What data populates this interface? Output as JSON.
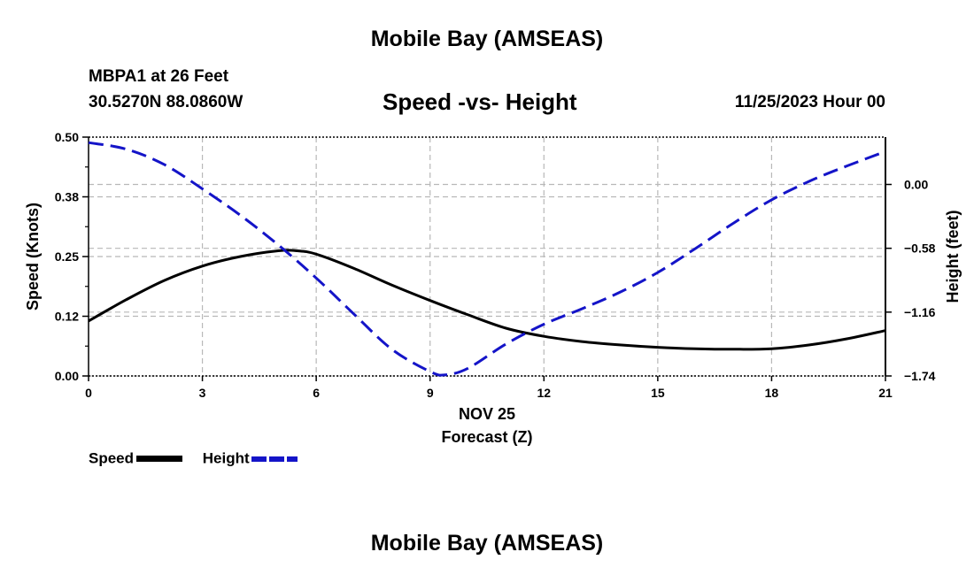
{
  "header": {
    "title": "Mobile Bay (AMSEAS)",
    "station": "MBPA1 at 26 Feet",
    "coordinates": "30.5270N  88.0860W",
    "chart_title": "Speed -vs- Height",
    "datetime": "11/25/2023 Hour 00"
  },
  "legend": {
    "speed": "Speed",
    "height": "Height"
  },
  "footer": {
    "title": "Mobile Bay (AMSEAS)"
  },
  "colors": {
    "speed": "#000000",
    "height": "#1414c8",
    "grid": "#b8b8b8"
  },
  "chart_data": {
    "type": "line",
    "title": "Speed -vs- Height",
    "xlabel": "Forecast (Z)",
    "xdate": "NOV 25",
    "ylabel": "Speed (Knots)",
    "y2label": "Height (feet)",
    "xlim": [
      0,
      21
    ],
    "ylim": [
      0,
      0.5
    ],
    "y2lim": [
      -1.74,
      0.43
    ],
    "x_ticks": [
      0,
      3,
      6,
      9,
      12,
      15,
      18,
      21
    ],
    "x_tick_labels": [
      "0",
      "3",
      "6",
      "9",
      "12",
      "15",
      "18",
      "21"
    ],
    "y_ticks": [
      0,
      0.125,
      0.25,
      0.375,
      0.5
    ],
    "y_tick_labels": [
      "0.00",
      "0.12",
      "0.25",
      "0.38",
      "0.50"
    ],
    "y2_ticks": [
      0,
      -0.58,
      -1.16,
      -1.74
    ],
    "y2_tick_labels": [
      "0.00",
      "−0.58",
      "−1.16",
      "−1.74"
    ],
    "grid": true,
    "legend_position": "bottom-left",
    "series": [
      {
        "name": "Speed",
        "axis": "left",
        "style": "solid",
        "x": [
          0,
          1,
          2,
          3,
          4,
          5,
          5.5,
          6,
          7,
          8,
          9,
          10,
          11,
          12,
          13,
          14,
          15,
          16,
          17,
          18,
          19,
          20,
          21
        ],
        "values": [
          0.115,
          0.16,
          0.2,
          0.23,
          0.25,
          0.262,
          0.262,
          0.255,
          0.225,
          0.19,
          0.158,
          0.128,
          0.1,
          0.083,
          0.072,
          0.065,
          0.06,
          0.057,
          0.056,
          0.057,
          0.065,
          0.078,
          0.095
        ]
      },
      {
        "name": "Height",
        "axis": "right",
        "style": "dashed",
        "x": [
          0,
          1,
          2,
          3,
          4,
          5,
          6,
          7,
          8,
          9,
          9.4,
          10,
          11,
          12,
          13,
          14,
          15,
          16,
          17,
          18,
          19,
          20,
          21
        ],
        "values": [
          0.38,
          0.32,
          0.18,
          -0.04,
          -0.28,
          -0.55,
          -0.85,
          -1.18,
          -1.5,
          -1.7,
          -1.73,
          -1.67,
          -1.45,
          -1.27,
          -1.13,
          -0.98,
          -0.8,
          -0.58,
          -0.35,
          -0.14,
          0.03,
          0.17,
          0.3
        ]
      }
    ]
  }
}
